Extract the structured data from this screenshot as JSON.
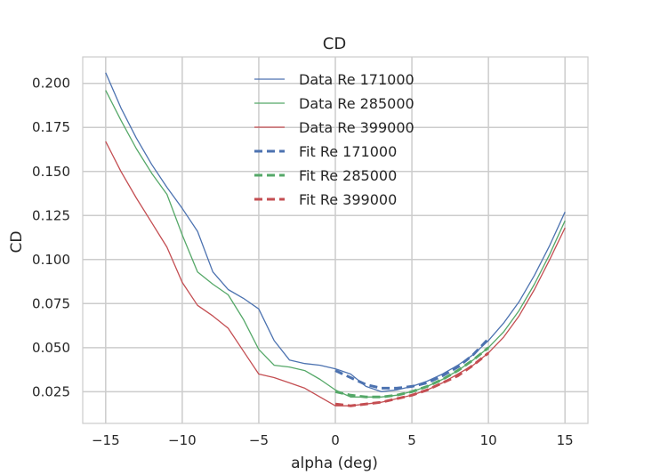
{
  "chart_data": {
    "type": "line",
    "title": "CD",
    "xlabel": "alpha (deg)",
    "ylabel": "CD",
    "xlim": [
      -16.5,
      16.5
    ],
    "ylim": [
      0.007,
      0.215
    ],
    "xticks": [
      -15,
      -10,
      -5,
      0,
      5,
      10,
      15
    ],
    "xtick_labels": [
      "−15",
      "−10",
      "−5",
      "0",
      "5",
      "10",
      "15"
    ],
    "yticks": [
      0.025,
      0.05,
      0.075,
      0.1,
      0.125,
      0.15,
      0.175,
      0.2
    ],
    "ytick_labels": [
      "0.025",
      "0.050",
      "0.075",
      "0.100",
      "0.125",
      "0.150",
      "0.175",
      "0.200"
    ],
    "grid": true,
    "legend_position": "top-center",
    "series": [
      {
        "name": "Data Re 171000",
        "color": "#4c72b0",
        "style": "solid",
        "x": [
          -15,
          -14,
          -13,
          -12,
          -11,
          -10,
          -9,
          -8,
          -7,
          -6,
          -5,
          -4,
          -3,
          -2,
          -1,
          0,
          1,
          2,
          3,
          4,
          5,
          6,
          7,
          8,
          9,
          10,
          11,
          12,
          13,
          14,
          15
        ],
        "y": [
          0.206,
          0.186,
          0.169,
          0.154,
          0.141,
          0.129,
          0.116,
          0.093,
          0.083,
          0.078,
          0.072,
          0.054,
          0.043,
          0.041,
          0.04,
          0.038,
          0.035,
          0.028,
          0.025,
          0.026,
          0.028,
          0.031,
          0.035,
          0.04,
          0.046,
          0.054,
          0.064,
          0.076,
          0.091,
          0.108,
          0.127
        ]
      },
      {
        "name": "Data Re 285000",
        "color": "#55a868",
        "style": "solid",
        "x": [
          -15,
          -14,
          -13,
          -12,
          -11,
          -10,
          -9,
          -8,
          -7,
          -6,
          -5,
          -4,
          -3,
          -2,
          -1,
          0,
          1,
          2,
          3,
          4,
          5,
          6,
          7,
          8,
          9,
          10,
          11,
          12,
          13,
          14,
          15
        ],
        "y": [
          0.196,
          0.179,
          0.163,
          0.149,
          0.137,
          0.114,
          0.093,
          0.086,
          0.08,
          0.066,
          0.049,
          0.04,
          0.039,
          0.037,
          0.032,
          0.026,
          0.022,
          0.022,
          0.022,
          0.023,
          0.025,
          0.028,
          0.032,
          0.037,
          0.043,
          0.05,
          0.059,
          0.071,
          0.086,
          0.103,
          0.122
        ]
      },
      {
        "name": "Data Re 399000",
        "color": "#c44e52",
        "style": "solid",
        "x": [
          -15,
          -14,
          -13,
          -12,
          -11,
          -10,
          -9,
          -8,
          -7,
          -6,
          -5,
          -4,
          -3,
          -2,
          -1,
          0,
          1,
          2,
          3,
          4,
          5,
          6,
          7,
          8,
          9,
          10,
          11,
          12,
          13,
          14,
          15
        ],
        "y": [
          0.167,
          0.15,
          0.135,
          0.121,
          0.107,
          0.087,
          0.074,
          0.068,
          0.061,
          0.048,
          0.035,
          0.033,
          0.03,
          0.027,
          0.022,
          0.017,
          0.017,
          0.018,
          0.019,
          0.021,
          0.023,
          0.026,
          0.03,
          0.035,
          0.04,
          0.047,
          0.056,
          0.068,
          0.083,
          0.1,
          0.118
        ]
      },
      {
        "name": "Fit Re 171000",
        "color": "#4c72b0",
        "style": "dashed",
        "x": [
          0,
          1,
          2,
          3,
          4,
          5,
          6,
          7,
          8,
          9,
          10
        ],
        "y": [
          0.037,
          0.033,
          0.029,
          0.027,
          0.027,
          0.028,
          0.03,
          0.034,
          0.039,
          0.046,
          0.055
        ]
      },
      {
        "name": "Fit Re 285000",
        "color": "#55a868",
        "style": "dashed",
        "x": [
          0,
          1,
          2,
          3,
          4,
          5,
          6,
          7,
          8,
          9,
          10
        ],
        "y": [
          0.025,
          0.023,
          0.022,
          0.022,
          0.023,
          0.025,
          0.028,
          0.032,
          0.037,
          0.043,
          0.05
        ]
      },
      {
        "name": "Fit Re 399000",
        "color": "#c44e52",
        "style": "dashed",
        "x": [
          0,
          1,
          2,
          3,
          4,
          5,
          6,
          7,
          8,
          9,
          10
        ],
        "y": [
          0.018,
          0.017,
          0.018,
          0.019,
          0.021,
          0.023,
          0.026,
          0.03,
          0.034,
          0.04,
          0.047
        ]
      }
    ]
  }
}
